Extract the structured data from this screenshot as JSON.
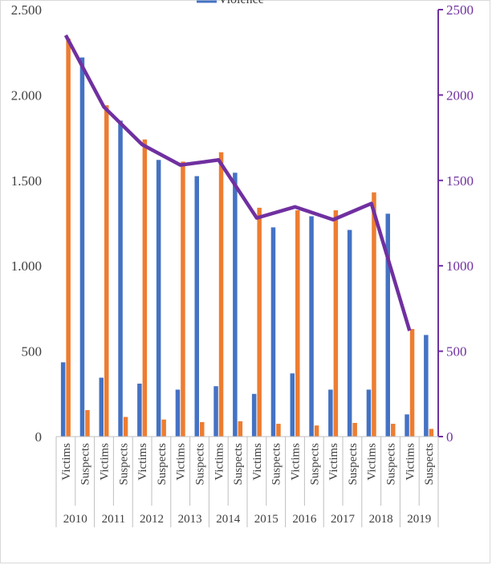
{
  "chart_data": {
    "type": "bar",
    "legend": {
      "entries": [
        {
          "label": "Violence",
          "marker": "line"
        }
      ],
      "placement": "top"
    },
    "years": [
      "2010",
      "2011",
      "2012",
      "2013",
      "2014",
      "2015",
      "2016",
      "2017",
      "2018",
      "2019"
    ],
    "groups": [
      "Victims",
      "Suspects"
    ],
    "left_axis": {
      "min": 0,
      "max": 2500,
      "ticks": [
        "0",
        "500",
        "1.000",
        "1.500",
        "2.000",
        "2.500"
      ],
      "tick_values": [
        0,
        500,
        1000,
        1500,
        2000,
        2500
      ]
    },
    "right_axis": {
      "min": 0,
      "max": 2500,
      "ticks": [
        "0",
        "500",
        "1000",
        "1500",
        "2000",
        "2500"
      ],
      "tick_values": [
        0,
        500,
        1000,
        1500,
        2000,
        2500
      ]
    },
    "bar_series": [
      {
        "color": "#4472c4",
        "values": [
          435,
          2220,
          345,
          1850,
          310,
          1620,
          275,
          1525,
          295,
          1545,
          250,
          1225,
          370,
          1290,
          275,
          1210,
          275,
          1305,
          130,
          595
        ]
      },
      {
        "color": "#ed7d31",
        "values": [
          2330,
          155,
          1940,
          115,
          1740,
          100,
          1610,
          85,
          1665,
          90,
          1340,
          75,
          1325,
          65,
          1325,
          80,
          1430,
          75,
          630,
          45
        ]
      }
    ],
    "line_series": {
      "color": "#7030a0",
      "points": [
        {
          "year": "2010",
          "group": "Victims",
          "value": 2350
        },
        {
          "year": "2011",
          "group": "Victims",
          "value": 1930
        },
        {
          "year": "2012",
          "group": "Victims",
          "value": 1710
        },
        {
          "year": "2013",
          "group": "Victims",
          "value": 1590
        },
        {
          "year": "2014",
          "group": "Victims",
          "value": 1620
        },
        {
          "year": "2015",
          "group": "Victims",
          "value": 1280
        },
        {
          "year": "2016",
          "group": "Victims",
          "value": 1345
        },
        {
          "year": "2017",
          "group": "Victims",
          "value": 1270
        },
        {
          "year": "2018",
          "group": "Victims",
          "value": 1365
        },
        {
          "year": "2019",
          "group": "Victims",
          "value": 620
        }
      ]
    },
    "grid": false
  }
}
